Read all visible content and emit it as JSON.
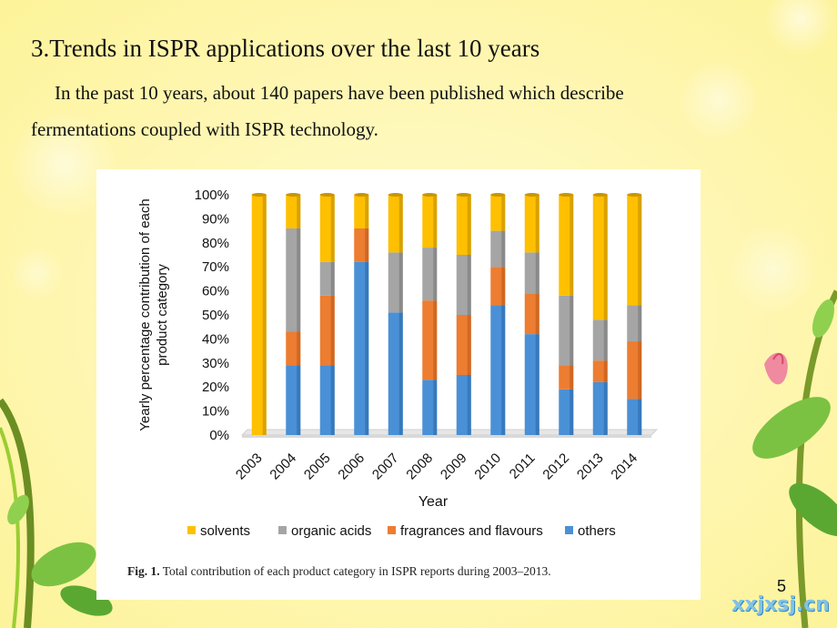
{
  "slide": {
    "heading": "3.Trends in ISPR applications over the last 10 years",
    "line1": "In the past 10 years, about 140 papers have been published which describe",
    "line2": "fermentations coupled with ISPR technology.",
    "page_number": "5",
    "watermark": "xxjxsj.cn"
  },
  "caption": {
    "label": "Fig. 1.",
    "text": " Total contribution of each product category in ISPR reports during 2003–2013."
  },
  "chart_data": {
    "type": "bar",
    "stacked": true,
    "orientation": "vertical",
    "categories": [
      "2003",
      "2004",
      "2005",
      "2006",
      "2007",
      "2008",
      "2009",
      "2010",
      "2011",
      "2012",
      "2013",
      "2014"
    ],
    "series": [
      {
        "name": "others",
        "color": "#4a90d6",
        "values": [
          0,
          29,
          29,
          72,
          51,
          23,
          25,
          54,
          42,
          19,
          22,
          15
        ]
      },
      {
        "name": "fragrances and flavours",
        "color": "#ec7d31",
        "values": [
          0,
          14,
          29,
          14,
          0,
          33,
          25,
          16,
          17,
          10,
          9,
          24
        ]
      },
      {
        "name": "organic acids",
        "color": "#a5a5a5",
        "values": [
          0,
          43,
          14,
          0,
          25,
          22,
          25,
          15,
          17,
          29,
          17,
          15
        ]
      },
      {
        "name": "solvents",
        "color": "#fec000",
        "values": [
          100,
          14,
          28,
          14,
          24,
          22,
          25,
          15,
          24,
          42,
          52,
          46
        ]
      }
    ],
    "legend_order": [
      "solvents",
      "organic acids",
      "fragrances and flavours",
      "others"
    ],
    "y_ticks": [
      "0%",
      "10%",
      "20%",
      "30%",
      "40%",
      "50%",
      "60%",
      "70%",
      "80%",
      "90%",
      "100%"
    ],
    "ylim": [
      0,
      100
    ],
    "ylabel_line1": "Yearly percentage contribution of each",
    "ylabel_line2": "product category",
    "xlabel": "Year",
    "legend_position": "bottom",
    "grid": false
  }
}
